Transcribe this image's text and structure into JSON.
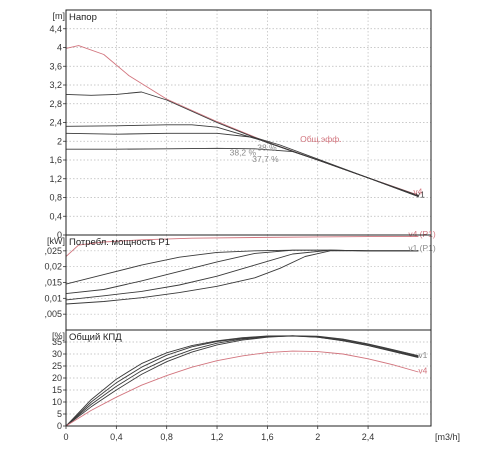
{
  "colors": {
    "dark": "#3a3a3a",
    "red": "#d2757e",
    "grid": "#b9b9b9",
    "frame": "#222222",
    "gray": "#8a8a8a"
  },
  "chart_data": {
    "type": "line",
    "x_unit": "[m3/h]",
    "xlim": [
      0,
      2.9
    ],
    "x_ticks": [
      0,
      0.4,
      0.8,
      1.2,
      1.6,
      2,
      2.4
    ],
    "x_tick_labels": [
      "0",
      "0,4",
      "0,8",
      "1,2",
      "1,6",
      "2",
      "2,4"
    ],
    "panels": [
      {
        "id": "head",
        "title": "Напор",
        "unit": "[m]",
        "ylim": [
          0,
          4.8
        ],
        "y_ticks": [
          0,
          0.4,
          0.8,
          1.2,
          1.6,
          2,
          2.4,
          2.8,
          3.2,
          3.6,
          4,
          4.4
        ],
        "y_tick_labels": [
          "0",
          "0,4",
          "0,8",
          "1,2",
          "1,6",
          "2",
          "2,4",
          "2,8",
          "3,2",
          "3,6",
          "4",
          "4,4"
        ],
        "series": [
          {
            "name": "",
            "color": "red",
            "x": [
              0,
              0.1,
              0.3,
              0.5,
              0.8,
              1.2,
              1.6,
              2.0,
              2.4,
              2.8
            ],
            "y": [
              3.98,
              4.04,
              3.85,
              3.4,
              2.9,
              2.42,
              1.98,
              1.6,
              1.22,
              0.85
            ]
          },
          {
            "name": "",
            "color": "dark",
            "x": [
              0,
              0.2,
              0.4,
              0.6,
              0.8,
              1.2,
              1.6,
              2.0,
              2.4,
              2.8
            ],
            "y": [
              3.0,
              2.98,
              3.0,
              3.05,
              2.88,
              2.4,
              1.97,
              1.6,
              1.22,
              0.82
            ]
          },
          {
            "name": "",
            "color": "dark",
            "x": [
              0,
              0.4,
              0.8,
              1.0,
              1.2,
              1.6,
              2.0,
              2.4,
              2.8
            ],
            "y": [
              2.32,
              2.33,
              2.35,
              2.35,
              2.3,
              1.98,
              1.6,
              1.22,
              0.83
            ]
          },
          {
            "name": "",
            "color": "dark",
            "x": [
              0,
              0.4,
              0.8,
              1.2,
              1.5,
              1.7,
              2.0,
              2.4,
              2.8
            ],
            "y": [
              2.17,
              2.15,
              2.17,
              2.17,
              2.08,
              1.92,
              1.62,
              1.22,
              0.82
            ]
          },
          {
            "name": "",
            "color": "dark",
            "x": [
              0,
              0.4,
              0.8,
              1.2,
              1.5,
              1.8,
              2.0,
              2.4,
              2.8
            ],
            "y": [
              1.83,
              1.83,
              1.84,
              1.85,
              1.84,
              1.78,
              1.6,
              1.22,
              0.84
            ]
          }
        ],
        "annotations": [
          {
            "text": "Общ.эфф.",
            "x": 1.86,
            "y": 1.98,
            "color": "red"
          },
          {
            "text": "38,2 %",
            "x": 1.3,
            "y": 1.7,
            "color": "gray"
          },
          {
            "text": "38 %",
            "x": 1.52,
            "y": 1.8,
            "color": "gray"
          },
          {
            "text": "37,7 %",
            "x": 1.48,
            "y": 1.56,
            "color": "gray"
          },
          {
            "text": "v1",
            "x": 2.78,
            "y": 0.8,
            "color": "dark"
          },
          {
            "text": "v4",
            "x": 2.76,
            "y": 0.86,
            "color": "red"
          }
        ]
      },
      {
        "id": "power",
        "title": "Потребл. мощность P1",
        "unit": "[kW]",
        "ylim": [
          0,
          0.03
        ],
        "y_ticks": [
          0.005,
          0.01,
          0.015,
          0.02,
          0.025
        ],
        "y_tick_labels": [
          ",005",
          "0,01",
          ",015",
          "0,02",
          ",025"
        ],
        "series": [
          {
            "name": "",
            "color": "red",
            "x": [
              0,
              0.1,
              0.3,
              0.6,
              1.0,
              1.5,
              2.0,
              2.4,
              2.8
            ],
            "y": [
              0.0232,
              0.0268,
              0.0278,
              0.0285,
              0.029,
              0.0292,
              0.0294,
              0.0295,
              0.0295
            ]
          },
          {
            "name": "",
            "color": "dark",
            "x": [
              0,
              0.3,
              0.6,
              0.9,
              1.2,
              1.5,
              1.8,
              2.1,
              2.4,
              2.8
            ],
            "y": [
              0.0145,
              0.0175,
              0.0205,
              0.023,
              0.0245,
              0.025,
              0.0252,
              0.0252,
              0.025,
              0.025
            ]
          },
          {
            "name": "",
            "color": "dark",
            "x": [
              0,
              0.3,
              0.6,
              0.9,
              1.2,
              1.5,
              1.8,
              2.1,
              2.4,
              2.8
            ],
            "y": [
              0.0115,
              0.0128,
              0.0155,
              0.0185,
              0.0215,
              0.0242,
              0.0252,
              0.0252,
              0.025,
              0.025
            ]
          },
          {
            "name": "",
            "color": "dark",
            "x": [
              0,
              0.3,
              0.6,
              0.9,
              1.2,
              1.5,
              1.8,
              2.1,
              2.4,
              2.8
            ],
            "y": [
              0.0095,
              0.0108,
              0.0122,
              0.0142,
              0.017,
              0.0205,
              0.024,
              0.0252,
              0.025,
              0.025
            ]
          },
          {
            "name": "",
            "color": "dark",
            "x": [
              0,
              0.3,
              0.6,
              0.9,
              1.2,
              1.5,
              1.7,
              1.9,
              2.1,
              2.4,
              2.8
            ],
            "y": [
              0.0082,
              0.009,
              0.0102,
              0.0118,
              0.0138,
              0.0165,
              0.0195,
              0.0232,
              0.025,
              0.025,
              0.025
            ]
          }
        ],
        "annotations": [
          {
            "text": "v4 (P1)",
            "x": 2.72,
            "y": 0.0293,
            "color": "red"
          },
          {
            "text": "v1 (P1)",
            "x": 2.72,
            "y": 0.0249,
            "color": "gray"
          }
        ]
      },
      {
        "id": "efficiency",
        "title": "Общий КПД",
        "unit": "[%]",
        "ylim": [
          0,
          40
        ],
        "y_ticks": [
          0,
          5,
          10,
          15,
          20,
          25,
          30,
          35
        ],
        "y_tick_labels": [
          "0",
          "5",
          "10",
          "15",
          "20",
          "25",
          "30",
          "35"
        ],
        "series": [
          {
            "name": "",
            "color": "dark",
            "x": [
              0,
              0.2,
              0.4,
              0.6,
              0.8,
              1.0,
              1.2,
              1.4,
              1.6,
              1.8,
              2.0,
              2.2,
              2.4,
              2.6,
              2.8
            ],
            "y": [
              0,
              11,
              19.5,
              26,
              30.5,
              33.5,
              35.5,
              36.8,
              37.5,
              37.6,
              37,
              35.5,
              33.5,
              31,
              28.5
            ]
          },
          {
            "name": "",
            "color": "dark",
            "x": [
              0,
              0.2,
              0.4,
              0.6,
              0.8,
              1.0,
              1.2,
              1.4,
              1.6,
              1.8,
              2.0,
              2.2,
              2.4,
              2.6,
              2.8
            ],
            "y": [
              0,
              10,
              18,
              24.5,
              29.5,
              33,
              35.2,
              36.5,
              37.3,
              37.5,
              37,
              35.6,
              33.6,
              31.2,
              28.7
            ]
          },
          {
            "name": "",
            "color": "dark",
            "x": [
              0,
              0.2,
              0.4,
              0.6,
              0.8,
              1.0,
              1.2,
              1.4,
              1.6,
              1.8,
              2.0,
              2.2,
              2.4,
              2.6,
              2.8
            ],
            "y": [
              0,
              9,
              16.5,
              23,
              28,
              31.8,
              34.5,
              36.2,
              37.2,
              37.6,
              37.2,
              35.9,
              33.9,
              31.5,
              29
            ]
          },
          {
            "name": "",
            "color": "dark",
            "x": [
              0,
              0.2,
              0.4,
              0.6,
              0.8,
              1.0,
              1.2,
              1.4,
              1.6,
              1.8,
              2.0,
              2.2,
              2.4,
              2.6,
              2.8
            ],
            "y": [
              0,
              8,
              15,
              21.5,
              26.8,
              30.8,
              33.8,
              35.8,
              37,
              37.6,
              37.4,
              36.2,
              34.2,
              31.8,
              29.3
            ]
          },
          {
            "name": "",
            "color": "red",
            "x": [
              0,
              0.2,
              0.4,
              0.6,
              0.8,
              1.0,
              1.2,
              1.4,
              1.6,
              1.8,
              2.0,
              2.2,
              2.4,
              2.6,
              2.8
            ],
            "y": [
              0,
              6.5,
              12,
              17,
              21,
              24.5,
              27.2,
              29.2,
              30.6,
              31.2,
              31,
              30,
              28,
              25.5,
              22.5
            ]
          }
        ],
        "annotations": [
          {
            "text": "v1",
            "x": 2.8,
            "y": 28.3,
            "color": "gray"
          },
          {
            "text": "v4",
            "x": 2.8,
            "y": 21.8,
            "color": "red"
          }
        ]
      }
    ]
  }
}
